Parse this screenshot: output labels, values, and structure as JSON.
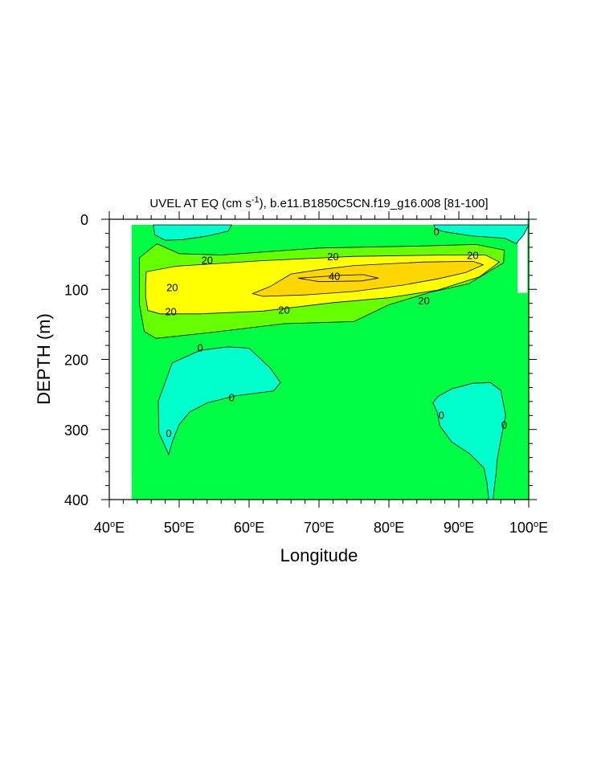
{
  "chart_data": {
    "type": "contour",
    "title": {
      "main": "UVEL AT EQ (cm s",
      "units_exponent": "-1",
      "rest": "), b.e11.B1850C5CN.f19_g16.008 [81-100]"
    },
    "xlabel": "Longitude",
    "ylabel": "DEPTH (m)",
    "xlim": [
      40,
      100
    ],
    "ylim": [
      400,
      0
    ],
    "x_ticks": [
      {
        "value": 40,
        "num": "40",
        "deg": "o",
        "suffix": "E"
      },
      {
        "value": 50,
        "num": "50",
        "deg": "o",
        "suffix": "E"
      },
      {
        "value": 60,
        "num": "60",
        "deg": "o",
        "suffix": "E"
      },
      {
        "value": 70,
        "num": "70",
        "deg": "o",
        "suffix": "E"
      },
      {
        "value": 80,
        "num": "80",
        "deg": "o",
        "suffix": "E"
      },
      {
        "value": 90,
        "num": "90",
        "deg": "o",
        "suffix": "E"
      },
      {
        "value": 100,
        "num": "100",
        "deg": "o",
        "suffix": "E"
      }
    ],
    "y_ticks": [
      {
        "value": 0,
        "label": "0"
      },
      {
        "value": 100,
        "label": "100"
      },
      {
        "value": 200,
        "label": "200"
      },
      {
        "value": 300,
        "label": "300"
      },
      {
        "value": 400,
        "label": "400"
      }
    ],
    "contour_levels": [
      0,
      20,
      40
    ],
    "fill_colors": {
      "below_0": "#00ffcc",
      "0_to_20": "#00ff44",
      "20_to_30": "#66ff00",
      "30_to_40": "#ffff00",
      "above_40": "#ffd700",
      "missing": "#ffffff"
    },
    "regions": [
      {
        "name": "data-domain",
        "fill": "#00ff44",
        "lonlat": [
          [
            43.2,
            8
          ],
          [
            98.4,
            8
          ],
          [
            98.4,
            105
          ],
          [
            99.8,
            105
          ],
          [
            99.8,
            0
          ],
          [
            100,
            0
          ],
          [
            100,
            400
          ],
          [
            98.4,
            400
          ],
          [
            98.4,
            400
          ],
          [
            43.2,
            400
          ]
        ]
      },
      {
        "name": "neg-top-left",
        "fill": "#00ffcc",
        "lonlat": [
          [
            46.3,
            8
          ],
          [
            57.5,
            8
          ],
          [
            57,
            17
          ],
          [
            54,
            24
          ],
          [
            50.5,
            29
          ],
          [
            48,
            30
          ],
          [
            46.5,
            22
          ]
        ]
      },
      {
        "name": "neg-top-right",
        "fill": "#00ffcc",
        "lonlat": [
          [
            86.4,
            8
          ],
          [
            100,
            8
          ],
          [
            99.3,
            22
          ],
          [
            98.2,
            35
          ],
          [
            96.6,
            27
          ],
          [
            92,
            24
          ],
          [
            88,
            18
          ],
          [
            86.7,
            14
          ]
        ]
      },
      {
        "name": "band-20-30",
        "fill": "#66ff00",
        "lonlat": [
          [
            44.3,
            55
          ],
          [
            46.8,
            35
          ],
          [
            50,
            49
          ],
          [
            56,
            51
          ],
          [
            70,
            41
          ],
          [
            85,
            38
          ],
          [
            92.5,
            36
          ],
          [
            96.5,
            44
          ],
          [
            96.4,
            62
          ],
          [
            91.4,
            92
          ],
          [
            86,
            104
          ],
          [
            80,
            122
          ],
          [
            75,
            146
          ],
          [
            65,
            149
          ],
          [
            55,
            161
          ],
          [
            46.7,
            170
          ],
          [
            45,
            160
          ],
          [
            44.3,
            120
          ]
        ]
      },
      {
        "name": "band-30-40",
        "fill": "#ffff00",
        "lonlat": [
          [
            45.2,
            92
          ],
          [
            45.3,
            75
          ],
          [
            49.5,
            67
          ],
          [
            62,
            59
          ],
          [
            75,
            53
          ],
          [
            88,
            51
          ],
          [
            93.8,
            51
          ],
          [
            95.8,
            61
          ],
          [
            93,
            82
          ],
          [
            87,
            101
          ],
          [
            80,
            112
          ],
          [
            72,
            119
          ],
          [
            62,
            131
          ],
          [
            53,
            135
          ],
          [
            47.3,
            135
          ],
          [
            45.5,
            130
          ],
          [
            45.2,
            110
          ]
        ]
      },
      {
        "name": "band-above-40",
        "fill": "#ffd700",
        "lonlat": [
          [
            60.5,
            106
          ],
          [
            63,
            96
          ],
          [
            66,
            78
          ],
          [
            70,
            72
          ],
          [
            75,
            66
          ],
          [
            85,
            61
          ],
          [
            92,
            60
          ],
          [
            93.5,
            65
          ],
          [
            91,
            76
          ],
          [
            87,
            85
          ],
          [
            82,
            94
          ],
          [
            75,
            103
          ],
          [
            68,
            108
          ],
          [
            62,
            110
          ]
        ]
      },
      {
        "name": "core-40",
        "fill": "#ffd700",
        "lonlat": [
          [
            67,
            84
          ],
          [
            73,
            80
          ],
          [
            76.3,
            79
          ],
          [
            78.5,
            84
          ],
          [
            76,
            88
          ],
          [
            70,
            89
          ]
        ]
      },
      {
        "name": "neg-mid-left",
        "fill": "#00ffcc",
        "lonlat": [
          [
            47.1,
            305
          ],
          [
            47,
            260
          ],
          [
            49,
            205
          ],
          [
            53,
            187
          ],
          [
            57,
            182
          ],
          [
            60,
            184
          ],
          [
            63,
            212
          ],
          [
            64.5,
            233
          ],
          [
            63.5,
            245
          ],
          [
            58,
            252
          ],
          [
            54,
            262
          ],
          [
            51.5,
            275
          ],
          [
            50,
            293
          ],
          [
            49,
            318
          ],
          [
            48.5,
            336
          ],
          [
            47.8,
            320
          ]
        ]
      },
      {
        "name": "neg-bottom-right",
        "fill": "#00ffcc",
        "lonlat": [
          [
            86.3,
            262
          ],
          [
            87,
            253
          ],
          [
            89,
            242
          ],
          [
            92,
            234
          ],
          [
            94.5,
            233
          ],
          [
            96,
            244
          ],
          [
            96.7,
            280
          ],
          [
            96,
            315
          ],
          [
            95.5,
            342
          ],
          [
            95.3,
            366
          ],
          [
            95,
            390
          ],
          [
            94.9,
            400
          ],
          [
            94.3,
            400
          ],
          [
            94,
            375
          ],
          [
            93.6,
            355
          ],
          [
            91.5,
            334
          ],
          [
            89,
            318
          ],
          [
            87.3,
            295
          ],
          [
            86.9,
            275
          ]
        ]
      }
    ],
    "contour_labels": [
      {
        "text": "0",
        "lon": 86.8,
        "depth": 17
      },
      {
        "text": "20",
        "lon": 54,
        "depth": 58
      },
      {
        "text": "20",
        "lon": 72,
        "depth": 53
      },
      {
        "text": "20",
        "lon": 92,
        "depth": 51
      },
      {
        "text": "40",
        "lon": 72.2,
        "depth": 81
      },
      {
        "text": "20",
        "lon": 49,
        "depth": 97
      },
      {
        "text": "20",
        "lon": 48.8,
        "depth": 131
      },
      {
        "text": "20",
        "lon": 65,
        "depth": 129
      },
      {
        "text": "20",
        "lon": 85,
        "depth": 116
      },
      {
        "text": "0",
        "lon": 53,
        "depth": 183
      },
      {
        "text": "0",
        "lon": 57.5,
        "depth": 254
      },
      {
        "text": "0",
        "lon": 48.5,
        "depth": 305
      },
      {
        "text": "0",
        "lon": 87.5,
        "depth": 279
      },
      {
        "text": "0",
        "lon": 96.5,
        "depth": 293
      }
    ]
  }
}
